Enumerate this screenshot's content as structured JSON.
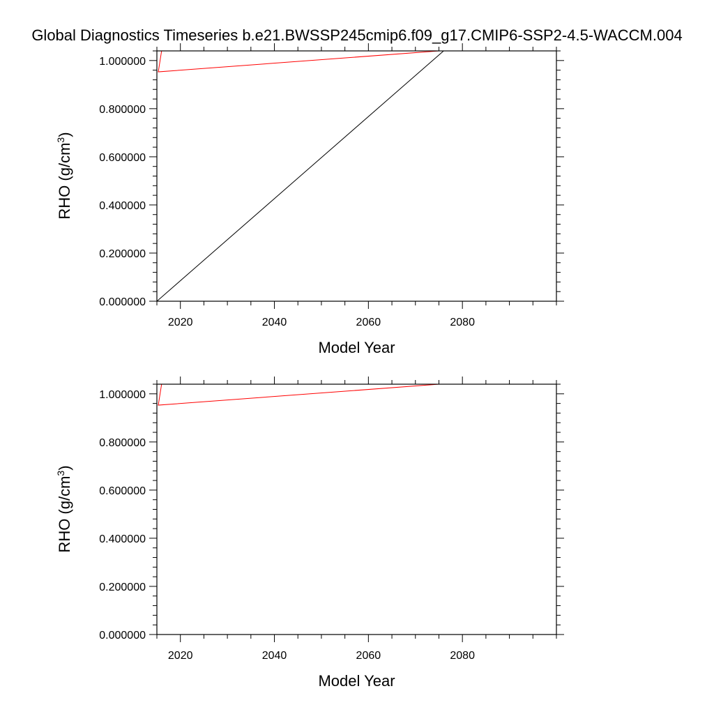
{
  "title": "Global Diagnostics Timeseries b.e21.BWSSP245cmip6.f09_g17.CMIP6-SSP2-4.5-WACCM.004",
  "colors": {
    "series_black": "#000000",
    "series_red": "#ff0000"
  },
  "chart_data": [
    {
      "type": "line",
      "xlabel": "Model Year",
      "ylabel_main": "RHO (g/cm",
      "ylabel_sup": "3",
      "ylabel_close": ")",
      "xlim": [
        2015,
        2100
      ],
      "ylim": [
        0,
        1.04
      ],
      "x_ticks": [
        2020,
        2040,
        2060,
        2080
      ],
      "x_tick_labels": [
        "2020",
        "2040",
        "2060",
        "2080"
      ],
      "y_ticks": [
        0,
        0.2,
        0.4,
        0.6,
        0.8,
        1.0
      ],
      "y_tick_labels": [
        "0.000000",
        "0.200000",
        "0.400000",
        "0.600000",
        "0.800000",
        "1.000000"
      ],
      "grid": false,
      "series": [
        {
          "color": "#000000",
          "points": [
            [
              2015,
              0
            ],
            [
              2076,
              1.04
            ]
          ]
        },
        {
          "color": "#ff0000",
          "points": [
            [
              2016,
              1.04
            ],
            [
              2015.3,
              0.953
            ],
            [
              2075,
              1.04
            ]
          ]
        }
      ]
    },
    {
      "type": "line",
      "xlabel": "Model Year",
      "ylabel_main": "RHO (g/cm",
      "ylabel_sup": "3",
      "ylabel_close": ")",
      "xlim": [
        2015,
        2100
      ],
      "ylim": [
        0,
        1.04
      ],
      "x_ticks": [
        2020,
        2040,
        2060,
        2080
      ],
      "x_tick_labels": [
        "2020",
        "2040",
        "2060",
        "2080"
      ],
      "y_ticks": [
        0,
        0.2,
        0.4,
        0.6,
        0.8,
        1.0
      ],
      "y_tick_labels": [
        "0.000000",
        "0.200000",
        "0.400000",
        "0.600000",
        "0.800000",
        "1.000000"
      ],
      "grid": false,
      "series": [
        {
          "color": "#ff0000",
          "points": [
            [
              2016,
              1.04
            ],
            [
              2015.3,
              0.953
            ],
            [
              2075,
              1.04
            ]
          ]
        }
      ]
    }
  ]
}
